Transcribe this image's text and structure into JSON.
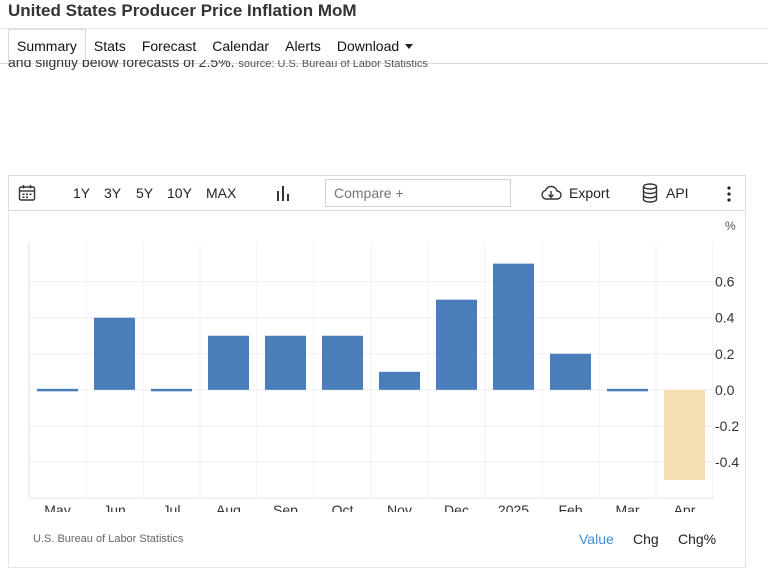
{
  "page": {
    "title": "United States Producer Price Inflation MoM",
    "description": "and slightly below forecasts of 2.5%.",
    "description_source": "source: U.S. Bureau of Labor Statistics"
  },
  "nav": {
    "items": [
      {
        "id": "summary",
        "label": "Summary",
        "active": true
      },
      {
        "id": "stats",
        "label": "Stats"
      },
      {
        "id": "forecast",
        "label": "Forecast"
      },
      {
        "id": "calendar",
        "label": "Calendar"
      },
      {
        "id": "alerts",
        "label": "Alerts"
      },
      {
        "id": "download",
        "label": "Download",
        "dropdown": true
      }
    ]
  },
  "toolbar": {
    "calendar_icon": "calendar-icon",
    "ranges": [
      "1Y",
      "3Y",
      "5Y",
      "10Y",
      "MAX"
    ],
    "chart_type_icon": "bar-chart-icon",
    "compare_placeholder": "Compare +",
    "export_icon": "cloud-download-icon",
    "export_label": "Export",
    "api_icon": "database-icon",
    "api_label": "API",
    "more_icon": "more-vertical-icon"
  },
  "chart_data": {
    "type": "bar",
    "title": "",
    "xlabel": "",
    "ylabel": "",
    "unit": "%",
    "categories": [
      "May",
      "Jun",
      "Jul",
      "Aug",
      "Sep",
      "Oct",
      "Nov",
      "Dec",
      "2025",
      "Feb",
      "Mar",
      "Apr"
    ],
    "values": [
      0.0,
      0.4,
      0.0,
      0.3,
      0.3,
      0.3,
      0.1,
      0.5,
      0.7,
      0.2,
      0.0,
      -0.5
    ],
    "yticks": [
      -0.4,
      -0.2,
      0.0,
      0.2,
      0.4,
      0.6
    ],
    "ylim": [
      -0.6,
      0.82
    ],
    "y_axis_position": "right",
    "grid": true,
    "colors": {
      "positive": "#4a7ebb",
      "negative": "#f5deb3"
    },
    "source": "U.S. Bureau of Labor Statistics"
  },
  "view_toggle": {
    "options": [
      "Value",
      "Chg",
      "Chg%"
    ],
    "active": "Value",
    "active_color": "#3b8fd8"
  }
}
